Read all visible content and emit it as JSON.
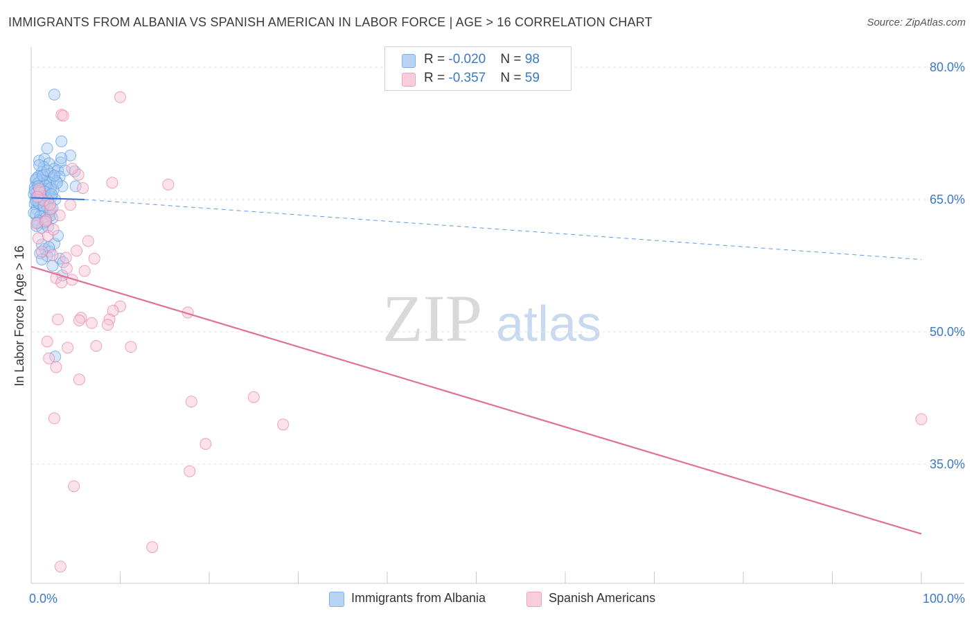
{
  "header": {
    "title": "IMMIGRANTS FROM ALBANIA VS SPANISH AMERICAN IN LABOR FORCE | AGE > 16 CORRELATION CHART",
    "source": "Source: ZipAtlas.com"
  },
  "watermark": {
    "zip": "ZIP",
    "atlas": "atlas"
  },
  "legend": {
    "rows": [
      {
        "r_label": "R = ",
        "r_value": "-0.020",
        "n_label": "N = ",
        "n_value": "98",
        "color": "#7fb0ee"
      },
      {
        "r_label": "R = ",
        "r_value": " -0.357",
        "n_label": "N = ",
        "n_value": "59",
        "color": "#f4a0ba"
      }
    ]
  },
  "chart_data": {
    "type": "scatter",
    "title": "IMMIGRANTS FROM ALBANIA VS SPANISH AMERICAN IN LABOR FORCE | AGE > 16 CORRELATION CHART",
    "xlabel": "",
    "ylabel": "In Labor Force | Age > 16",
    "xlim": [
      0,
      100
    ],
    "ylim": [
      20,
      83
    ],
    "x_tick_labels": [
      {
        "value": 0,
        "label": "0.0%"
      },
      {
        "value": 100,
        "label": "100.0%"
      }
    ],
    "y_tick_labels": [
      {
        "value": 80,
        "label": "80.0%"
      },
      {
        "value": 65,
        "label": "65.0%"
      },
      {
        "value": 50,
        "label": "50.0%"
      },
      {
        "value": 35,
        "label": "35.0%"
      }
    ],
    "x_minor_ticks": [
      0,
      10,
      20,
      30,
      40,
      50,
      60,
      70,
      80,
      90,
      100
    ],
    "grid": true,
    "series": [
      {
        "name": "Immigrants from Albania",
        "color": "#5a9be6",
        "fill": "#a9c9f2",
        "trend": {
          "solid": [
            [
              0,
              65.2
            ],
            [
              6,
              65.0
            ]
          ],
          "dashed": [
            [
              6,
              65.0
            ],
            [
              100,
              58.2
            ]
          ]
        },
        "points": [
          [
            2.6,
            76.9
          ],
          [
            3.4,
            71.6
          ],
          [
            1.8,
            70.8
          ],
          [
            4.4,
            70.0
          ],
          [
            0.9,
            69.4
          ],
          [
            1.5,
            69.6
          ],
          [
            2.0,
            69.1
          ],
          [
            3.3,
            69.2
          ],
          [
            1.4,
            68.7
          ],
          [
            2.6,
            68.5
          ],
          [
            3.0,
            68.3
          ],
          [
            3.8,
            68.3
          ],
          [
            1.2,
            68.1
          ],
          [
            2.2,
            67.9
          ],
          [
            0.8,
            67.6
          ],
          [
            1.6,
            67.8
          ],
          [
            2.4,
            67.5
          ],
          [
            3.2,
            67.6
          ],
          [
            0.5,
            67.2
          ],
          [
            1.1,
            67.2
          ],
          [
            1.9,
            67.0
          ],
          [
            2.8,
            67.1
          ],
          [
            0.7,
            66.8
          ],
          [
            1.4,
            66.7
          ],
          [
            2.1,
            66.9
          ],
          [
            3.5,
            66.5
          ],
          [
            5.0,
            66.5
          ],
          [
            0.4,
            66.4
          ],
          [
            1.0,
            66.3
          ],
          [
            1.7,
            66.2
          ],
          [
            2.5,
            66.1
          ],
          [
            0.6,
            65.9
          ],
          [
            1.3,
            65.8
          ],
          [
            2.0,
            65.7
          ],
          [
            0.3,
            65.6
          ],
          [
            0.9,
            65.5
          ],
          [
            1.6,
            65.4
          ],
          [
            2.3,
            65.3
          ],
          [
            0.5,
            65.2
          ],
          [
            1.2,
            65.1
          ],
          [
            2.7,
            65.0
          ],
          [
            0.7,
            64.8
          ],
          [
            1.5,
            64.7
          ],
          [
            0.4,
            64.5
          ],
          [
            1.0,
            64.3
          ],
          [
            1.8,
            64.2
          ],
          [
            0.6,
            63.9
          ],
          [
            1.3,
            63.7
          ],
          [
            2.1,
            63.6
          ],
          [
            0.5,
            63.3
          ],
          [
            1.0,
            63.1
          ],
          [
            1.6,
            62.9
          ],
          [
            2.4,
            62.9
          ],
          [
            0.8,
            62.6
          ],
          [
            1.4,
            62.3
          ],
          [
            0.6,
            62.0
          ],
          [
            1.2,
            61.8
          ],
          [
            2.6,
            60.0
          ],
          [
            1.5,
            59.4
          ],
          [
            2.1,
            59.1
          ],
          [
            1.0,
            58.9
          ],
          [
            1.8,
            58.6
          ],
          [
            3.2,
            58.3
          ],
          [
            1.2,
            58.2
          ],
          [
            2.4,
            57.5
          ],
          [
            3.6,
            57.9
          ],
          [
            3.5,
            56.4
          ],
          [
            2.7,
            47.2
          ],
          [
            4.9,
            68.2
          ],
          [
            3.4,
            69.7
          ],
          [
            0.9,
            67.0
          ],
          [
            1.6,
            66.6
          ],
          [
            2.2,
            66.3
          ],
          [
            0.4,
            66.0
          ],
          [
            1.1,
            65.3
          ],
          [
            1.9,
            64.9
          ],
          [
            0.8,
            64.6
          ],
          [
            2.4,
            64.0
          ],
          [
            0.3,
            63.5
          ],
          [
            1.7,
            62.6
          ],
          [
            0.6,
            67.4
          ],
          [
            1.3,
            67.7
          ],
          [
            2.9,
            66.9
          ],
          [
            0.9,
            68.9
          ],
          [
            1.8,
            68.3
          ],
          [
            2.6,
            67.7
          ],
          [
            1.0,
            66.0
          ],
          [
            0.5,
            64.9
          ],
          [
            1.4,
            64.3
          ],
          [
            2.2,
            63.2
          ],
          [
            0.7,
            62.4
          ],
          [
            1.9,
            61.9
          ],
          [
            3.0,
            60.9
          ],
          [
            1.2,
            59.9
          ],
          [
            2.0,
            59.6
          ],
          [
            0.8,
            66.5
          ],
          [
            1.5,
            65.9
          ],
          [
            2.3,
            65.6
          ]
        ]
      },
      {
        "name": "Spanish Americans",
        "color": "#e97fa2",
        "fill": "#f8c1d3",
        "trend": {
          "solid": [
            [
              0,
              57.4
            ],
            [
              100,
              27.1
            ]
          ]
        },
        "points": [
          [
            10.0,
            76.6
          ],
          [
            3.4,
            74.6
          ],
          [
            3.6,
            74.5
          ],
          [
            5.3,
            67.8
          ],
          [
            4.6,
            68.5
          ],
          [
            9.1,
            66.9
          ],
          [
            15.4,
            66.7
          ],
          [
            5.8,
            66.3
          ],
          [
            4.4,
            64.4
          ],
          [
            1.7,
            62.7
          ],
          [
            0.8,
            60.6
          ],
          [
            1.9,
            60.9
          ],
          [
            2.4,
            58.7
          ],
          [
            5.1,
            59.2
          ],
          [
            7.1,
            58.3
          ],
          [
            4.0,
            57.2
          ],
          [
            6.0,
            56.9
          ],
          [
            2.8,
            56.1
          ],
          [
            3.4,
            55.6
          ],
          [
            10.0,
            52.9
          ],
          [
            9.2,
            52.4
          ],
          [
            8.8,
            51.4
          ],
          [
            5.6,
            51.6
          ],
          [
            5.4,
            51.3
          ],
          [
            3.0,
            51.4
          ],
          [
            6.8,
            51.0
          ],
          [
            8.6,
            50.8
          ],
          [
            17.6,
            52.2
          ],
          [
            1.8,
            48.9
          ],
          [
            7.3,
            48.4
          ],
          [
            11.2,
            48.3
          ],
          [
            4.1,
            48.2
          ],
          [
            2.0,
            47.0
          ],
          [
            2.8,
            46.0
          ],
          [
            5.4,
            44.6
          ],
          [
            25.0,
            42.6
          ],
          [
            18.0,
            42.1
          ],
          [
            2.6,
            40.2
          ],
          [
            28.3,
            39.5
          ],
          [
            19.6,
            37.3
          ],
          [
            17.8,
            34.2
          ],
          [
            4.8,
            32.5
          ],
          [
            13.6,
            25.6
          ],
          [
            3.3,
            23.4
          ],
          [
            100,
            40.1
          ],
          [
            1.0,
            65.8
          ],
          [
            2.2,
            63.9
          ],
          [
            0.6,
            62.3
          ],
          [
            3.2,
            63.2
          ],
          [
            1.4,
            64.9
          ],
          [
            2.5,
            61.6
          ],
          [
            0.9,
            66.2
          ],
          [
            6.4,
            60.3
          ],
          [
            1.2,
            59.1
          ],
          [
            4.6,
            55.9
          ],
          [
            3.9,
            58.4
          ],
          [
            2.1,
            64.4
          ],
          [
            0.7,
            65.3
          ],
          [
            1.6,
            62.5
          ]
        ]
      }
    ]
  }
}
